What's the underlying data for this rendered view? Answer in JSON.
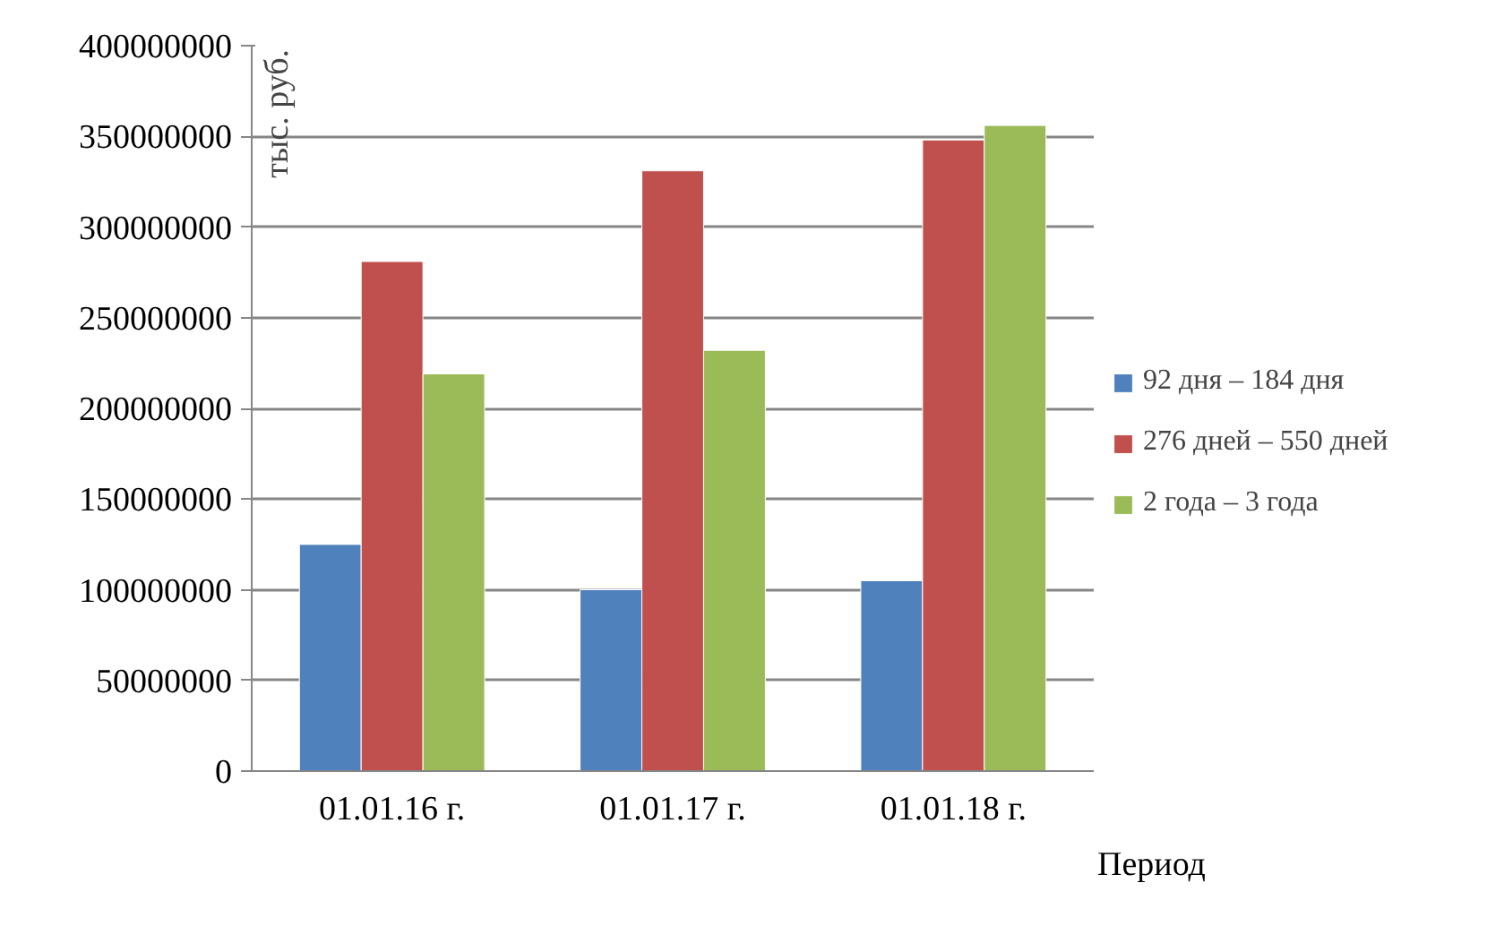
{
  "chart_data": {
    "type": "bar",
    "categories": [
      "01.01.16 г.",
      "01.01.17 г.",
      "01.01.18 г."
    ],
    "xlabel": "Период",
    "ylabel": "тыс. руб.",
    "series": [
      {
        "name": "92 дня – 184 дня",
        "color": "#4f81bd",
        "values": [
          125000000,
          100000000,
          105000000
        ]
      },
      {
        "name": "276 дней – 550 дней",
        "color": "#c0504d",
        "values": [
          281000000,
          331000000,
          348000000
        ]
      },
      {
        "name": "2 года – 3 года",
        "color": "#9bbb59",
        "values": [
          219000000,
          232000000,
          356000000
        ]
      }
    ],
    "ylim": [
      0,
      400000000
    ],
    "yticks": [
      0,
      50000000,
      100000000,
      150000000,
      200000000,
      250000000,
      300000000,
      350000000,
      400000000
    ],
    "grid": "y",
    "legend": "right"
  }
}
